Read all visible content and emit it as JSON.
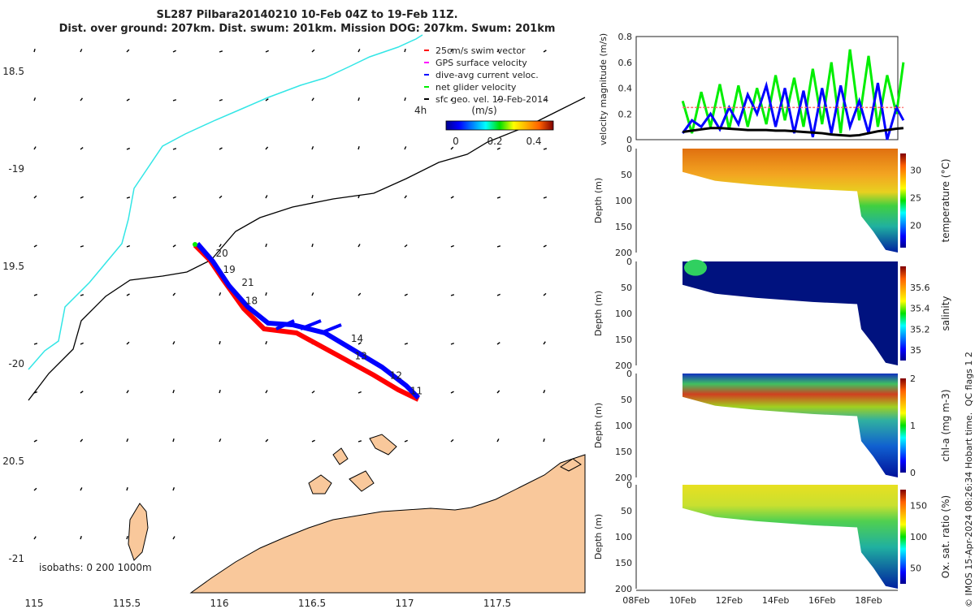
{
  "title": {
    "line1": "SL287 Pilbara20140210 10-Feb 04Z to 19-Feb 11Z.",
    "line2": "Dist. over ground: 207km. Dist. swum: 201km. Mission DOG: 207km. Swum: 201km"
  },
  "map": {
    "lon_ticks": [
      "115",
      "115.5",
      "116",
      "116.5",
      "117",
      "117.5"
    ],
    "lat_ticks": [
      "18.5",
      "-19",
      "19.5",
      "-20",
      "20.5",
      "-21"
    ],
    "legend": [
      {
        "label": "25cm/s swim vector",
        "color": "#ff0000"
      },
      {
        "label": "GPS surface velocity",
        "color": "#ff00ff"
      },
      {
        "label": "dive-avg current veloc.",
        "color": "#0000ff"
      },
      {
        "label": "net glider velocity",
        "color": "#00ee00"
      },
      {
        "label": "sfc geo. vel. 19-Feb-2014",
        "color": "#000000"
      }
    ],
    "interval_label": "4h",
    "colorbar_label": "(m/s)",
    "colorbar_ticks": [
      "0",
      "0.2",
      "0.4"
    ],
    "isobaths_label": "isobaths: 0   200  1000m",
    "waypoints": [
      {
        "label": "20",
        "lon": 115.98,
        "lat": 19.45
      },
      {
        "label": "19",
        "lon": 116.02,
        "lat": 19.5
      },
      {
        "label": "21",
        "lon": 116.12,
        "lat": 19.6
      },
      {
        "label": "18",
        "lon": 116.14,
        "lat": 19.66
      },
      {
        "label": "14",
        "lon": 116.71,
        "lat": 19.87
      },
      {
        "label": "13",
        "lon": 116.73,
        "lat": 19.96
      },
      {
        "label": "12",
        "lon": 116.92,
        "lat": 20.06
      },
      {
        "label": "11",
        "lon": 117.03,
        "lat": 20.14
      }
    ],
    "colors": {
      "land": "#f9c89b",
      "coast_contour": "#33e6e6",
      "isobath": "#000000",
      "track_red": "#ff0000",
      "track_blue": "#0000ff"
    }
  },
  "chart_data": [
    {
      "type": "line",
      "ylabel": "velocity magnitude (m/s)",
      "ylim": [
        0,
        0.8
      ],
      "yticks": [
        "0",
        "0.2",
        "0.4",
        "0.6",
        "0.8"
      ],
      "x_days": [
        10.0,
        10.4,
        10.8,
        11.2,
        11.6,
        12.0,
        12.4,
        12.8,
        13.2,
        13.6,
        14.0,
        14.4,
        14.8,
        15.2,
        15.6,
        16.0,
        16.4,
        16.8,
        17.2,
        17.6,
        18.0,
        18.4,
        18.8,
        19.2,
        19.5
      ],
      "series": [
        {
          "name": "net glider velocity",
          "color": "#00ee00",
          "values": [
            0.3,
            0.05,
            0.37,
            0.1,
            0.43,
            0.08,
            0.42,
            0.1,
            0.4,
            0.12,
            0.5,
            0.15,
            0.48,
            0.1,
            0.55,
            0.12,
            0.6,
            0.05,
            0.7,
            0.15,
            0.65,
            0.1,
            0.5,
            0.2,
            0.6
          ]
        },
        {
          "name": "dive-avg current veloc.",
          "color": "#0000ff",
          "values": [
            0.05,
            0.15,
            0.1,
            0.2,
            0.08,
            0.25,
            0.12,
            0.35,
            0.2,
            0.42,
            0.1,
            0.4,
            0.05,
            0.38,
            0.02,
            0.4,
            0.05,
            0.42,
            0.1,
            0.3,
            0.05,
            0.44,
            0.0,
            0.25,
            0.15
          ]
        },
        {
          "name": "25cm/s swim vector",
          "color": "#ff6666",
          "values": [
            0.25,
            0.25,
            0.25,
            0.25,
            0.25,
            0.25,
            0.25,
            0.25,
            0.25,
            0.25,
            0.25,
            0.25,
            0.25,
            0.25,
            0.25,
            0.25,
            0.25,
            0.25,
            0.25,
            0.25,
            0.25,
            0.25,
            0.25,
            0.25,
            0.25
          ]
        },
        {
          "name": "sfc geo. vel.",
          "color": "#000000",
          "values": [
            0.06,
            0.07,
            0.08,
            0.09,
            0.09,
            0.085,
            0.08,
            0.075,
            0.075,
            0.075,
            0.07,
            0.07,
            0.065,
            0.06,
            0.055,
            0.05,
            0.04,
            0.035,
            0.03,
            0.035,
            0.05,
            0.065,
            0.075,
            0.085,
            0.09
          ]
        }
      ]
    },
    {
      "type": "heatmap",
      "variable": "temperature (°C)",
      "ylabel": "Depth (m)",
      "ylim": [
        200,
        0
      ],
      "yticks": [
        "0",
        "50",
        "100",
        "150",
        "200"
      ],
      "cbar_ticks": [
        "20",
        "25",
        "30"
      ],
      "clim": [
        16,
        33
      ]
    },
    {
      "type": "heatmap",
      "variable": "salinity",
      "ylabel": "Depth (m)",
      "ylim": [
        200,
        0
      ],
      "yticks": [
        "0",
        "50",
        "100",
        "150",
        "200"
      ],
      "cbar_ticks": [
        "35",
        "35.2",
        "35.4",
        "35.6"
      ],
      "clim": [
        34.9,
        35.8
      ]
    },
    {
      "type": "heatmap",
      "variable": "chl-a (mg m-3)",
      "ylabel": "Depth (m)",
      "ylim": [
        200,
        0
      ],
      "yticks": [
        "0",
        "50",
        "100",
        "150",
        "200"
      ],
      "cbar_ticks": [
        "0",
        "1",
        "2"
      ],
      "clim": [
        0,
        2
      ]
    },
    {
      "type": "heatmap",
      "variable": "Ox. sat. ratio (%)",
      "ylabel": "Depth (m)",
      "ylim": [
        200,
        0
      ],
      "yticks": [
        "0",
        "50",
        "100",
        "150",
        "200"
      ],
      "cbar_ticks": [
        "50",
        "100",
        "150"
      ],
      "clim": [
        25,
        175
      ]
    }
  ],
  "time_axis": {
    "ticks": [
      "08Feb",
      "10Feb",
      "12Feb",
      "14Feb",
      "16Feb",
      "18Feb"
    ]
  },
  "footer": {
    "qc": "QC flags 1  2",
    "credit": "© IMOS 15-Apr-2024 08:26:34 Hobart time."
  }
}
